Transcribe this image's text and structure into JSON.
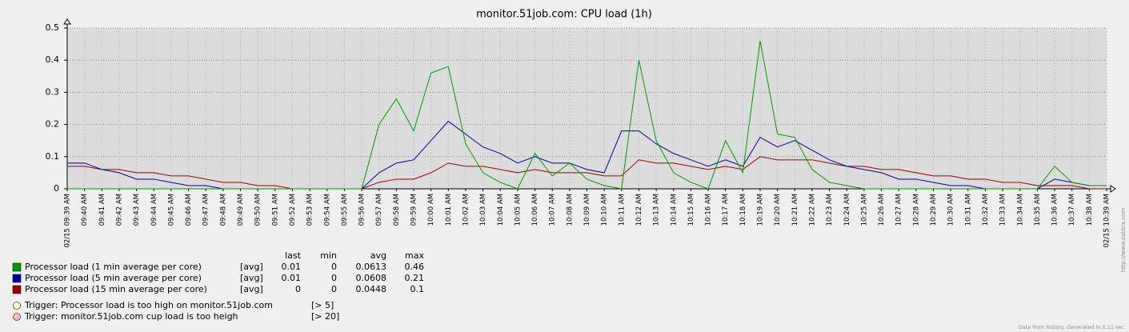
{
  "chart_data": {
    "type": "line",
    "title": "monitor.51job.com: CPU load (1h)",
    "categories": [
      "02/15 09:39 AM",
      "09:40 AM",
      "09:41 AM",
      "09:42 AM",
      "09:43 AM",
      "09:44 AM",
      "09:45 AM",
      "09:46 AM",
      "09:47 AM",
      "09:48 AM",
      "09:49 AM",
      "09:50 AM",
      "09:51 AM",
      "09:52 AM",
      "09:53 AM",
      "09:54 AM",
      "09:55 AM",
      "09:56 AM",
      "09:57 AM",
      "09:58 AM",
      "09:59 AM",
      "10:00 AM",
      "10:01 AM",
      "10:02 AM",
      "10:03 AM",
      "10:04 AM",
      "10:05 AM",
      "10:06 AM",
      "10:07 AM",
      "10:08 AM",
      "10:09 AM",
      "10:10 AM",
      "10:11 AM",
      "10:12 AM",
      "10:13 AM",
      "10:14 AM",
      "10:15 AM",
      "10:16 AM",
      "10:17 AM",
      "10:18 AM",
      "10:19 AM",
      "10:20 AM",
      "10:21 AM",
      "10:22 AM",
      "10:23 AM",
      "10:24 AM",
      "10:25 AM",
      "10:26 AM",
      "10:27 AM",
      "10:28 AM",
      "10:29 AM",
      "10:30 AM",
      "10:31 AM",
      "10:32 AM",
      "10:33 AM",
      "10:34 AM",
      "10:35 AM",
      "10:36 AM",
      "10:37 AM",
      "10:38 AM",
      "02/15 10:39 AM"
    ],
    "series": [
      {
        "name": "Processor load (1 min average per core)",
        "color": "#009900",
        "func": "[avg]",
        "last": 0.01,
        "min": 0,
        "avg": 0.0613,
        "max": 0.46,
        "values": [
          0,
          0,
          0,
          0,
          0,
          0,
          0,
          0,
          0,
          0,
          0,
          0,
          0,
          0,
          0,
          0,
          0,
          0,
          0.2,
          0.28,
          0.18,
          0.36,
          0.38,
          0.14,
          0.05,
          0.02,
          0,
          0.11,
          0.04,
          0.08,
          0.03,
          0.01,
          0,
          0.4,
          0.15,
          0.05,
          0.02,
          0,
          0.15,
          0.05,
          0.46,
          0.17,
          0.16,
          0.06,
          0.02,
          0.01,
          0,
          0,
          0,
          0,
          0,
          0,
          0,
          0,
          0,
          0,
          0,
          0.07,
          0.02,
          0.01,
          0.01
        ]
      },
      {
        "name": "Processor load (5 min average per core)",
        "color": "#000099",
        "func": "[avg]",
        "last": 0.01,
        "min": 0,
        "avg": 0.0608,
        "max": 0.21,
        "values": [
          0.08,
          0.08,
          0.06,
          0.05,
          0.03,
          0.03,
          0.02,
          0.01,
          0.01,
          0,
          0,
          0,
          0,
          0,
          0,
          0,
          0,
          0,
          0.05,
          0.08,
          0.09,
          0.15,
          0.21,
          0.17,
          0.13,
          0.11,
          0.08,
          0.1,
          0.08,
          0.08,
          0.06,
          0.05,
          0.18,
          0.18,
          0.14,
          0.11,
          0.09,
          0.07,
          0.09,
          0.07,
          0.16,
          0.13,
          0.15,
          0.12,
          0.09,
          0.07,
          0.06,
          0.05,
          0.03,
          0.03,
          0.02,
          0.01,
          0.01,
          0,
          0,
          0,
          0,
          0.03,
          0.02,
          0.01,
          0.01
        ]
      },
      {
        "name": "Processor load (15 min average per core)",
        "color": "#990000",
        "func": "[avg]",
        "last": 0,
        "min": 0,
        "avg": 0.0448,
        "max": 0.1,
        "values": [
          0.07,
          0.07,
          0.06,
          0.06,
          0.05,
          0.05,
          0.04,
          0.04,
          0.03,
          0.02,
          0.02,
          0.01,
          0.01,
          0,
          0,
          0,
          0,
          0,
          0.02,
          0.03,
          0.03,
          0.05,
          0.08,
          0.07,
          0.07,
          0.06,
          0.05,
          0.06,
          0.05,
          0.05,
          0.05,
          0.04,
          0.04,
          0.09,
          0.08,
          0.08,
          0.07,
          0.06,
          0.07,
          0.06,
          0.1,
          0.09,
          0.09,
          0.09,
          0.08,
          0.07,
          0.07,
          0.06,
          0.06,
          0.05,
          0.04,
          0.04,
          0.03,
          0.03,
          0.02,
          0.02,
          0.01,
          0.01,
          0.01,
          0,
          0
        ]
      }
    ],
    "stats_headers": [
      "last",
      "min",
      "avg",
      "max"
    ],
    "triggers": [
      {
        "name": "Trigger: Processor load is too high on monitor.51job.com",
        "condition": "[> 5]",
        "color": "#ffffcc"
      },
      {
        "name": "Trigger: monitor.51job.com cup load is too heigh",
        "condition": "[> 20]",
        "color": "#ffbbbb"
      }
    ],
    "ylim": [
      0,
      0.5
    ],
    "yticks": [
      0,
      0.1,
      0.2,
      0.3,
      0.4,
      0.5
    ],
    "grid": true,
    "side_note": "http://www.zabbix.com",
    "footer": "Data from history. Generated in 0.11 sec"
  }
}
